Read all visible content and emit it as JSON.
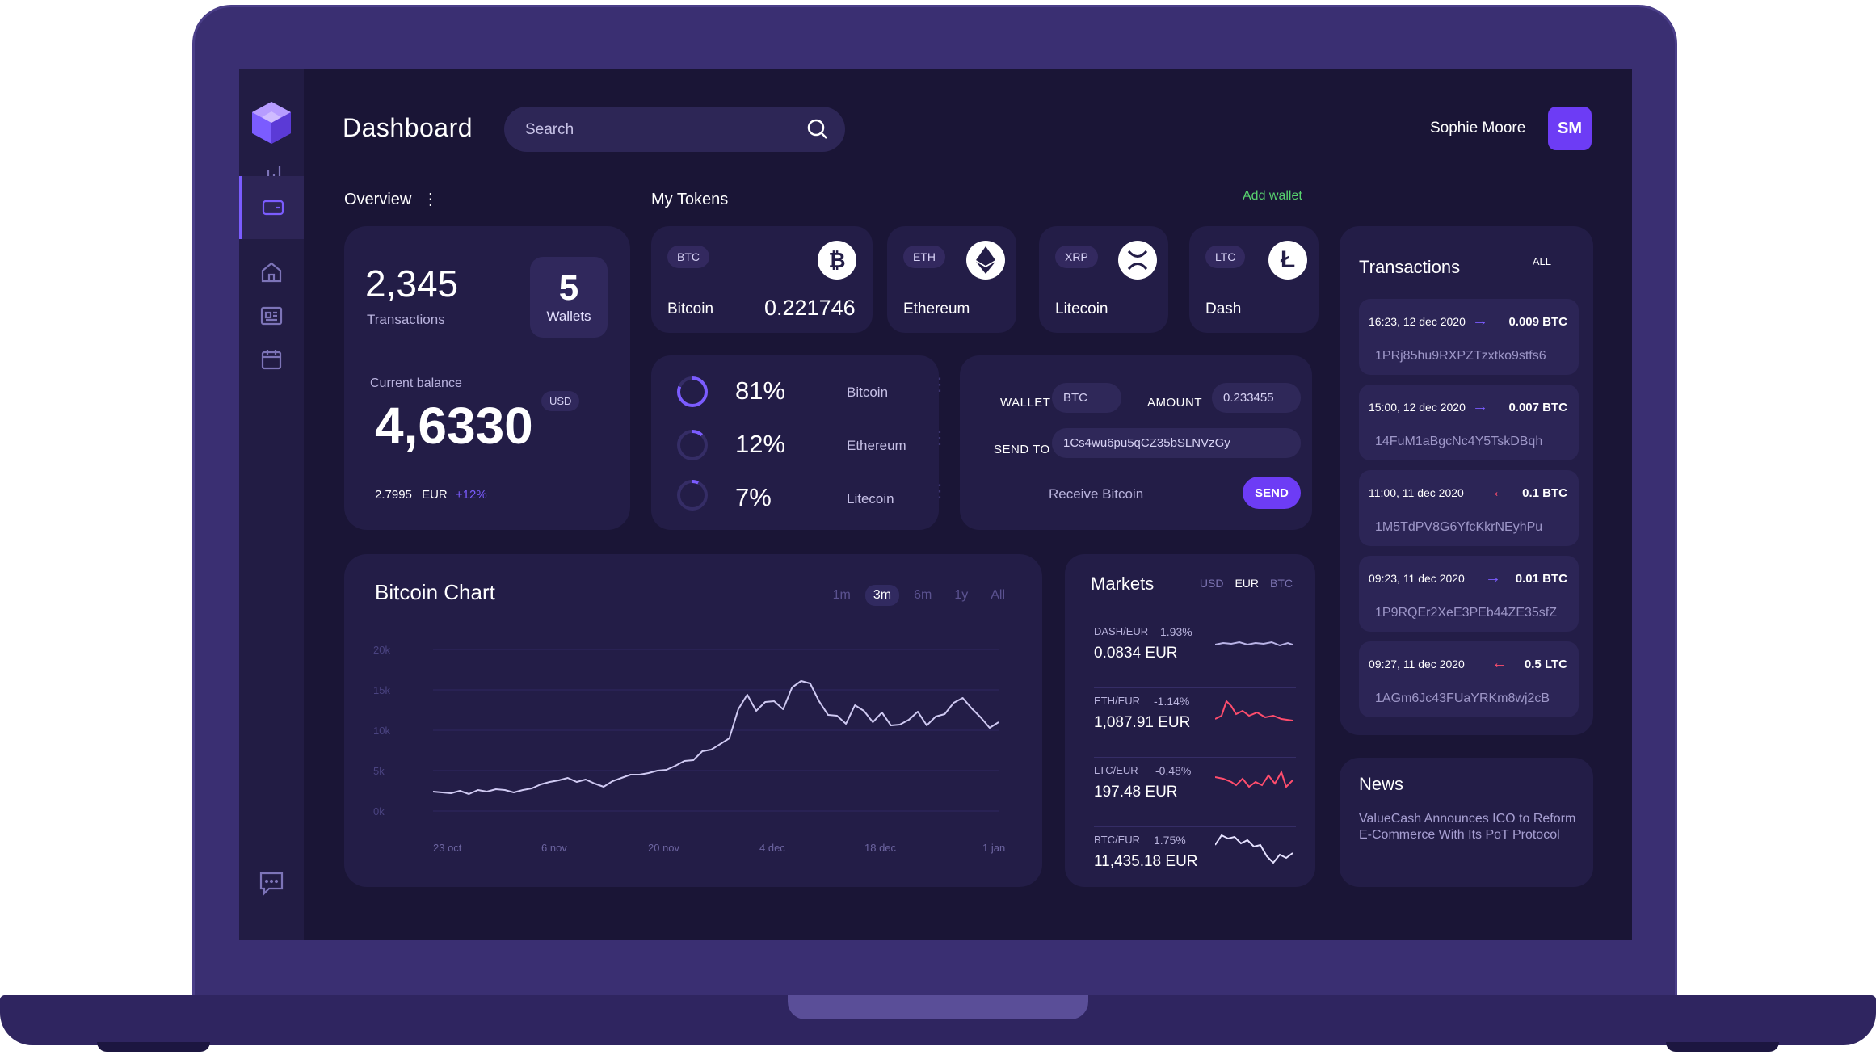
{
  "header": {
    "title": "Dashboard",
    "search_placeholder": "Search",
    "user_name": "Sophie Moore",
    "avatar_initials": "SM"
  },
  "overview": {
    "label": "Overview",
    "transactions_count": "2,345",
    "transactions_label": "Transactions",
    "wallets_count": "5",
    "wallets_label": "Wallets",
    "balance_label": "Current balance",
    "balance_currency": "USD",
    "balance_value": "4,6330",
    "eur_value": "2.7995",
    "eur_label": "EUR",
    "eur_change": "+12%"
  },
  "tokens": {
    "label": "My Tokens",
    "add_wallet": "Add wallet",
    "items": [
      {
        "tag": "BTC",
        "name": "Bitcoin",
        "value": "0.221746",
        "icon": "bitcoin-icon"
      },
      {
        "tag": "ETH",
        "name": "Ethereum",
        "icon": "ethereum-icon"
      },
      {
        "tag": "XRP",
        "name": "Litecoin",
        "icon": "xrp-icon"
      },
      {
        "tag": "LTC",
        "name": "Dash",
        "icon": "litecoin-icon"
      }
    ]
  },
  "allocation": [
    {
      "pct": "81%",
      "name": "Bitcoin",
      "fraction": 0.81
    },
    {
      "pct": "12%",
      "name": "Ethereum",
      "fraction": 0.12
    },
    {
      "pct": "7%",
      "name": "Litecoin",
      "fraction": 0.07
    }
  ],
  "send_form": {
    "wallet_label": "WALLET",
    "wallet_value": "BTC",
    "amount_label": "AMOUNT",
    "amount_value": "0.233455",
    "send_to_label": "SEND TO",
    "send_to_value": "1Cs4wu6pu5qCZ35bSLNVzGy",
    "receive_label": "Receive Bitcoin",
    "send_button": "SEND"
  },
  "chart": {
    "title": "Bitcoin Chart",
    "ranges": [
      "1m",
      "3m",
      "6m",
      "1y",
      "All"
    ],
    "active_range": "3m"
  },
  "chart_data": {
    "type": "line",
    "title": "Bitcoin Chart",
    "xlabel": "",
    "ylabel": "",
    "y_ticks": [
      "20k",
      "15k",
      "10k",
      "5k",
      "0k"
    ],
    "x_ticks": [
      "23 oct",
      "6 nov",
      "20 nov",
      "4 dec",
      "18 dec",
      "1 jan"
    ],
    "ylim": [
      0,
      20000
    ],
    "grid": true,
    "series": [
      {
        "values": [
          2400,
          2300,
          2200,
          2500,
          2100,
          2600,
          2400,
          2700,
          2600,
          2300,
          2600,
          2800,
          3300,
          3600,
          3800,
          4100,
          3600,
          3900,
          3400,
          3000,
          3700,
          4100,
          4500,
          4500,
          4700,
          5000,
          5100,
          5600,
          6200,
          6300,
          7400,
          7600,
          8300,
          9000,
          12600,
          14400,
          12400,
          13500,
          13600,
          12600,
          15300,
          16100,
          15800,
          13600,
          11900,
          11800,
          10800,
          13100,
          12400,
          11000,
          12200,
          10600,
          10700,
          11300,
          12300,
          10600,
          11700,
          12000,
          13400,
          14000,
          12700,
          11600,
          10300,
          11000
        ]
      }
    ]
  },
  "markets": {
    "title": "Markets",
    "tabs": [
      "USD",
      "EUR",
      "BTC"
    ],
    "active_tab": "EUR",
    "items": [
      {
        "pair": "DASH/EUR",
        "change": "1.93%",
        "price": "0.0834  EUR",
        "color": "#b9b3e6"
      },
      {
        "pair": "ETH/EUR",
        "change": "-1.14%",
        "price": "1,087.91  EUR",
        "color": "#ff4d6d"
      },
      {
        "pair": "LTC/EUR",
        "change": "-0.48%",
        "price": "197.48  EUR",
        "color": "#ff4d6d"
      },
      {
        "pair": "BTC/EUR",
        "change": "1.75%",
        "price": "11,435.18  EUR",
        "color": "#e6e2ff"
      }
    ]
  },
  "transactions": {
    "title": "Transactions",
    "filter": "ALL",
    "items": [
      {
        "time": "16:23, 12 dec 2020",
        "amount": "0.009 BTC",
        "direction": "in",
        "address": "1PRj85hu9RXPZTzxtko9stfs6"
      },
      {
        "time": "15:00, 12 dec 2020",
        "amount": "0.007 BTC",
        "direction": "in",
        "address": "14FuM1aBgcNc4Y5TskDBqh"
      },
      {
        "time": "11:00, 11 dec 2020",
        "amount": "0.1 BTC",
        "direction": "out",
        "address": "1M5TdPV8G6YfcKkrNEyhPu"
      },
      {
        "time": "09:23, 11 dec 2020",
        "amount": "0.01 BTC",
        "direction": "in",
        "address": "1P9RQEr2XeE3PEb44ZE35sfZ"
      },
      {
        "time": "09:27, 11 dec 2020",
        "amount": "0.5 LTC",
        "direction": "out",
        "address": "1AGm6Jc43FUaYRKm8wj2cB"
      }
    ]
  },
  "news": {
    "title": "News",
    "text": "ValueCash Announces ICO to Reform E-Commerce With Its PoT Protocol"
  },
  "colors": {
    "accent": "#6d3cf5",
    "background": "#1a1536",
    "card": "#231d47",
    "positive": "#58d36f",
    "negative": "#ff4d6d"
  }
}
